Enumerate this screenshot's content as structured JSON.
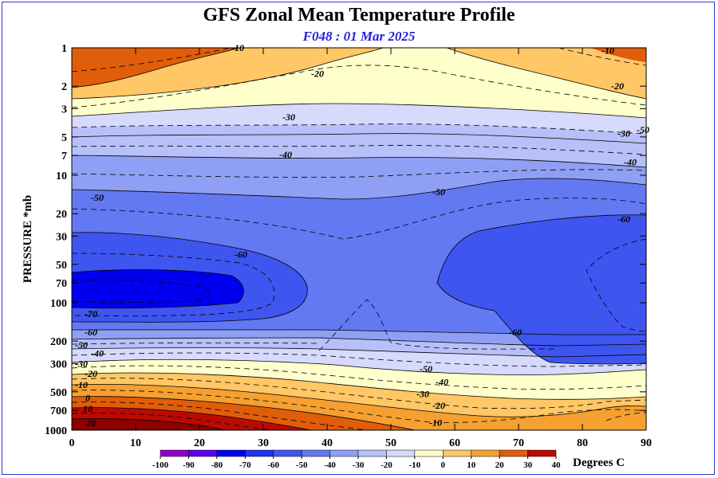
{
  "title": "GFS Zonal Mean Temperature Profile",
  "subtitle": "F048 : 01 Mar 2025",
  "chart_data": {
    "type": "heatmap",
    "subtype": "filled-contour",
    "title": "GFS Zonal Mean Temperature Profile",
    "subtitle": "F048 : 01 Mar 2025",
    "ylabel": "PRESSURE *mb",
    "xlabel": "",
    "x_range": [
      0,
      90
    ],
    "x_ticks": [
      "0",
      "10",
      "20",
      "30",
      "40",
      "50",
      "60",
      "70",
      "80",
      "90"
    ],
    "y_scale": "log",
    "y_reversed": true,
    "y_range": [
      1,
      1000
    ],
    "y_ticks": [
      "1",
      "2",
      "3",
      "5",
      "7",
      "10",
      "20",
      "30",
      "50",
      "70",
      "100",
      "200",
      "300",
      "500",
      "700",
      "1000"
    ],
    "colorbar": {
      "unit_label": "Degrees C",
      "ticks": [
        "-100",
        "-90",
        "-80",
        "-70",
        "-60",
        "-50",
        "-40",
        "-30",
        "-20",
        "-10",
        "0",
        "10",
        "20",
        "30",
        "40"
      ],
      "colors": [
        "#8f00c8",
        "#5a00f0",
        "#0000ee",
        "#1f32ee",
        "#3f55f0",
        "#6379f2",
        "#8fa0f4",
        "#b7c0f8",
        "#d6dafc",
        "#ffffcc",
        "#ffc766",
        "#f5a030",
        "#e05d0a",
        "#bb0a02",
        "#8d0000"
      ]
    },
    "contour_labels": [
      {
        "text": "-10",
        "x": 26,
        "p": 1
      },
      {
        "text": "-10",
        "x": 84,
        "p": 1.05
      },
      {
        "text": "-20",
        "x": 38.5,
        "p": 1.6
      },
      {
        "text": "-20",
        "x": 85.5,
        "p": 2
      },
      {
        "text": "-30",
        "x": 34,
        "p": 3.5
      },
      {
        "text": "-30",
        "x": 86.5,
        "p": 4.7
      },
      {
        "text": "-50",
        "x": 89.5,
        "p": 4.4
      },
      {
        "text": "-40",
        "x": 33.5,
        "p": 6.9
      },
      {
        "text": "-40",
        "x": 87.5,
        "p": 7.9
      },
      {
        "text": "-50",
        "x": 4,
        "p": 15
      },
      {
        "text": "-50",
        "x": 57.5,
        "p": 13.5
      },
      {
        "text": "-60",
        "x": 86.5,
        "p": 22
      },
      {
        "text": "-60",
        "x": 26.5,
        "p": 42
      },
      {
        "text": "-60",
        "x": 69.5,
        "p": 170
      },
      {
        "text": "-70",
        "x": 3,
        "p": 122
      },
      {
        "text": "-60",
        "x": 3,
        "p": 170
      },
      {
        "text": "-50",
        "x": 1.5,
        "p": 215
      },
      {
        "text": "-40",
        "x": 4,
        "p": 250
      },
      {
        "text": "-30",
        "x": 1.5,
        "p": 300
      },
      {
        "text": "-20",
        "x": 3,
        "p": 360
      },
      {
        "text": "-10",
        "x": 1.5,
        "p": 440
      },
      {
        "text": "0",
        "x": 2.5,
        "p": 560
      },
      {
        "text": "-50",
        "x": 55.5,
        "p": 330
      },
      {
        "text": "-40",
        "x": 58,
        "p": 420
      },
      {
        "text": "-30",
        "x": 55,
        "p": 520
      },
      {
        "text": "-20",
        "x": 57.5,
        "p": 640
      },
      {
        "text": "-10",
        "x": 57,
        "p": 870
      },
      {
        "text": "10",
        "x": 2.5,
        "p": 680
      },
      {
        "text": "20",
        "x": 3,
        "p": 880
      }
    ]
  }
}
